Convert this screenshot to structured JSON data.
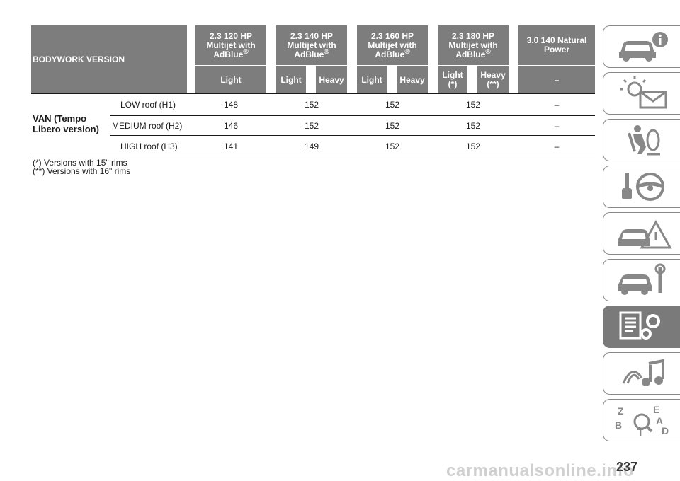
{
  "table": {
    "header_label": "BODYWORK VERSION",
    "engines": [
      {
        "line1": "2.3 120 HP",
        "line2": "Multijet with",
        "line3": "AdBlue",
        "reg": "®"
      },
      {
        "line1": "2.3 140 HP",
        "line2": "Multijet with",
        "line3": "AdBlue",
        "reg": "®"
      },
      {
        "line1": "2.3 160 HP",
        "line2": "Multijet with",
        "line3": "AdBlue",
        "reg": "®"
      },
      {
        "line1": "2.3 180 HP",
        "line2": "Multijet with",
        "line3": "AdBlue",
        "reg": "®"
      },
      {
        "line1": "3.0 140 Natural",
        "line2": "Power",
        "line3": "",
        "reg": ""
      }
    ],
    "variants": [
      "Light",
      "Light",
      "Heavy",
      "Light",
      "Heavy",
      "Light\n(*)",
      "Heavy\n(**)",
      "–"
    ],
    "group_label": "VAN (Tempo Libero version)",
    "rows": [
      {
        "label": "LOW roof (H1)",
        "values": [
          "148",
          "152",
          "152",
          "152",
          "–"
        ]
      },
      {
        "label": "MEDIUM roof (H2)",
        "values": [
          "146",
          "152",
          "152",
          "152",
          "–"
        ]
      },
      {
        "label": "HIGH roof (H3)",
        "values": [
          "141",
          "149",
          "152",
          "152",
          "–"
        ]
      }
    ]
  },
  "footnotes": [
    "(*) Versions with 15\" rims",
    "(**) Versions with 16\" rims"
  ],
  "sidebar_tabs": [
    {
      "icon": "car-info-icon",
      "active": false
    },
    {
      "icon": "warning-lights-icon",
      "active": false
    },
    {
      "icon": "safety-airbag-icon",
      "active": false
    },
    {
      "icon": "key-steering-wheel-icon",
      "active": false
    },
    {
      "icon": "emergency-car-icon",
      "active": false
    },
    {
      "icon": "car-service-wrench-icon",
      "active": false
    },
    {
      "icon": "technical-data-gears-icon",
      "active": true
    },
    {
      "icon": "multimedia-icon",
      "active": false
    },
    {
      "icon": "index-letters-icon",
      "active": false
    }
  ],
  "page_number": "237",
  "watermark": "carmanualsonline.info",
  "colors": {
    "header_bg": "#7d7d7d",
    "header_text": "#ffffff",
    "active_tab": "#7a7a7a"
  }
}
